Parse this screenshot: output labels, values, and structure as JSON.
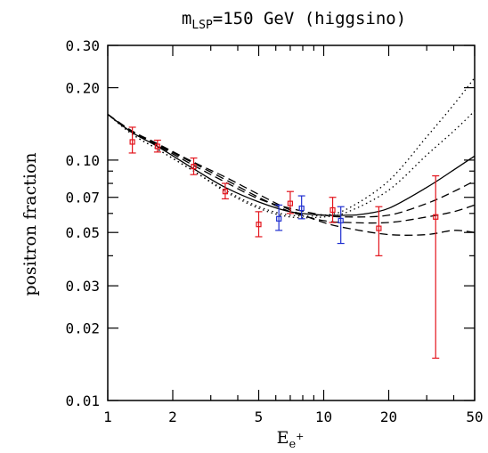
{
  "chart_data": {
    "type": "scatter",
    "title_main": "m",
    "title_sub": "LSP",
    "title_rest": "=150 GeV (higgsino)",
    "xlabel_main": "E",
    "xlabel_sub": "e",
    "xlabel_sup": "+",
    "ylabel": "positron fraction",
    "xscale": "log",
    "yscale": "log",
    "xlim": [
      1,
      50
    ],
    "ylim": [
      0.01,
      0.3
    ],
    "grid": false,
    "xticks": [
      {
        "v": 1,
        "label": "1"
      },
      {
        "v": 2,
        "label": "2"
      },
      {
        "v": 5,
        "label": "5"
      },
      {
        "v": 10,
        "label": "10"
      },
      {
        "v": 20,
        "label": "20"
      },
      {
        "v": 50,
        "label": "50"
      }
    ],
    "yticks": [
      {
        "v": 0.01,
        "label": "0.01"
      },
      {
        "v": 0.02,
        "label": "0.02"
      },
      {
        "v": 0.03,
        "label": "0.03"
      },
      {
        "v": 0.05,
        "label": "0.05"
      },
      {
        "v": 0.07,
        "label": "0.07"
      },
      {
        "v": 0.1,
        "label": "0.10"
      },
      {
        "v": 0.2,
        "label": "0.20"
      },
      {
        "v": 0.3,
        "label": "0.30"
      }
    ],
    "colors": {
      "red": "#e3141c",
      "blue": "#1f2fd0",
      "curve": "#000000"
    },
    "points": [
      {
        "x": 1.3,
        "y": 0.119,
        "lo": 0.107,
        "hi": 0.137,
        "color": "red"
      },
      {
        "x": 1.7,
        "y": 0.114,
        "lo": 0.108,
        "hi": 0.121,
        "color": "red"
      },
      {
        "x": 2.5,
        "y": 0.094,
        "lo": 0.087,
        "hi": 0.102,
        "color": "red"
      },
      {
        "x": 3.5,
        "y": 0.074,
        "lo": 0.069,
        "hi": 0.08,
        "color": "red"
      },
      {
        "x": 5.0,
        "y": 0.054,
        "lo": 0.048,
        "hi": 0.061,
        "color": "red"
      },
      {
        "x": 6.2,
        "y": 0.057,
        "lo": 0.051,
        "hi": 0.065,
        "color": "blue"
      },
      {
        "x": 7.0,
        "y": 0.066,
        "lo": 0.06,
        "hi": 0.074,
        "color": "red"
      },
      {
        "x": 7.9,
        "y": 0.063,
        "lo": 0.057,
        "hi": 0.071,
        "color": "blue"
      },
      {
        "x": 11.0,
        "y": 0.062,
        "lo": 0.055,
        "hi": 0.07,
        "color": "red"
      },
      {
        "x": 12.0,
        "y": 0.056,
        "lo": 0.045,
        "hi": 0.064,
        "color": "blue"
      },
      {
        "x": 18.0,
        "y": 0.052,
        "lo": 0.04,
        "hi": 0.064,
        "color": "red"
      },
      {
        "x": 33.0,
        "y": 0.058,
        "lo": 0.015,
        "hi": 0.086,
        "color": "red"
      }
    ],
    "curves": [
      {
        "style": "solid",
        "x": [
          1,
          1.3,
          1.7,
          2.5,
          3.5,
          5,
          7,
          10,
          13,
          15,
          20,
          30,
          40,
          50
        ],
        "y": [
          0.155,
          0.13,
          0.114,
          0.092,
          0.077,
          0.067,
          0.061,
          0.059,
          0.059,
          0.0595,
          0.063,
          0.077,
          0.091,
          0.104
        ]
      },
      {
        "style": "dashed",
        "x": [
          1,
          1.3,
          1.7,
          2.5,
          3.5,
          5,
          7,
          10,
          13,
          20,
          30,
          40,
          50
        ],
        "y": [
          0.155,
          0.13,
          0.115,
          0.095,
          0.081,
          0.069,
          0.063,
          0.059,
          0.058,
          0.059,
          0.066,
          0.074,
          0.082
        ]
      },
      {
        "style": "dashed",
        "x": [
          1,
          1.3,
          1.7,
          2.5,
          3.5,
          5,
          7,
          10,
          13,
          20,
          30,
          40,
          50
        ],
        "y": [
          0.155,
          0.131,
          0.116,
          0.097,
          0.083,
          0.07,
          0.061,
          0.056,
          0.055,
          0.055,
          0.058,
          0.061,
          0.065
        ]
      },
      {
        "style": "dashed",
        "x": [
          1,
          1.3,
          1.7,
          2.5,
          3.5,
          5,
          7,
          10,
          13,
          20,
          30,
          40,
          50
        ],
        "y": [
          0.155,
          0.132,
          0.117,
          0.098,
          0.085,
          0.072,
          0.062,
          0.055,
          0.052,
          0.049,
          0.049,
          0.051,
          0.05
        ]
      },
      {
        "style": "dotted",
        "x": [
          1,
          1.3,
          1.7,
          2.5,
          3.5,
          5,
          7,
          10,
          13,
          20,
          30,
          40,
          50
        ],
        "y": [
          0.155,
          0.128,
          0.111,
          0.09,
          0.074,
          0.063,
          0.058,
          0.058,
          0.061,
          0.075,
          0.105,
          0.132,
          0.16
        ]
      },
      {
        "style": "dotted",
        "x": [
          1,
          1.3,
          1.7,
          2.5,
          3.5,
          5,
          7,
          10,
          13,
          20,
          30,
          40,
          50
        ],
        "y": [
          0.155,
          0.128,
          0.111,
          0.09,
          0.075,
          0.064,
          0.059,
          0.059,
          0.063,
          0.082,
          0.125,
          0.17,
          0.22
        ]
      }
    ]
  }
}
